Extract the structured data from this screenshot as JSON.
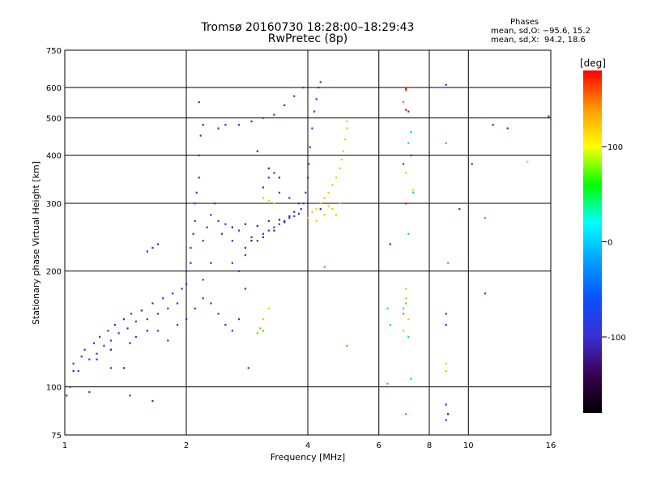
{
  "title": "Tromsø 20160730 18:28:00–18:29:43",
  "subtitle": "RwPretec (8p)",
  "stats": {
    "header": "Phases",
    "line1": "mean, sd,O: −95.6, 15.2",
    "line2": "mean, sd,X:  94.2, 18.6"
  },
  "chart_data": {
    "type": "scatter",
    "title": "Tromsø 20160730 18:28:00–18:29:43",
    "subtitle": "RwPretec (8p)",
    "xlabel": "Frequency [MHz]",
    "ylabel": "Stationary phase Virtual Height [km]",
    "x_scale": "log",
    "y_scale": "log",
    "xlim": [
      1,
      16
    ],
    "ylim": [
      75,
      750
    ],
    "x_ticks": [
      1,
      2,
      4,
      6,
      8,
      10,
      16
    ],
    "y_ticks": [
      75,
      100,
      200,
      300,
      400,
      500,
      600,
      750
    ],
    "grid": true,
    "colorbar": {
      "label": "[deg]",
      "range": [
        -180,
        180
      ],
      "ticks": [
        100,
        0,
        -100
      ],
      "colors": [
        "#000000",
        "#3a0050",
        "#3a2fd0",
        "#0a50ff",
        "#00a0ff",
        "#00ffff",
        "#00ff00",
        "#ffff00",
        "#ff9900",
        "#ff0000"
      ]
    },
    "series": [
      {
        "color": "#2236e0",
        "points": [
          [
            1.01,
            95
          ],
          [
            1.03,
            100
          ],
          [
            1.05,
            115
          ],
          [
            1.08,
            110
          ],
          [
            1.1,
            120
          ],
          [
            1.12,
            125
          ],
          [
            1.15,
            118
          ],
          [
            1.18,
            130
          ],
          [
            1.2,
            122
          ],
          [
            1.22,
            135
          ],
          [
            1.25,
            128
          ],
          [
            1.28,
            140
          ],
          [
            1.3,
            132
          ],
          [
            1.33,
            145
          ],
          [
            1.36,
            138
          ],
          [
            1.4,
            150
          ],
          [
            1.43,
            142
          ],
          [
            1.46,
            155
          ],
          [
            1.5,
            148
          ],
          [
            1.55,
            158
          ],
          [
            1.6,
            150
          ],
          [
            1.65,
            165
          ],
          [
            1.7,
            155
          ],
          [
            1.75,
            170
          ],
          [
            1.8,
            160
          ],
          [
            1.85,
            175
          ],
          [
            1.9,
            165
          ],
          [
            1.95,
            180
          ],
          [
            2.0,
            185
          ],
          [
            2.0,
            200
          ],
          [
            2.05,
            210
          ],
          [
            2.05,
            230
          ],
          [
            2.08,
            250
          ],
          [
            2.1,
            270
          ],
          [
            2.1,
            300
          ],
          [
            2.12,
            320
          ],
          [
            2.15,
            350
          ],
          [
            2.15,
            400
          ],
          [
            2.17,
            450
          ],
          [
            2.2,
            480
          ],
          [
            2.2,
            240
          ],
          [
            2.25,
            260
          ],
          [
            2.3,
            280
          ],
          [
            2.35,
            300
          ],
          [
            2.4,
            270
          ],
          [
            2.45,
            250
          ],
          [
            2.5,
            265
          ],
          [
            2.6,
            240
          ],
          [
            2.7,
            255
          ],
          [
            2.8,
            230
          ],
          [
            2.9,
            245
          ],
          [
            3.0,
            240
          ],
          [
            3.1,
            250
          ],
          [
            3.2,
            255
          ],
          [
            3.3,
            260
          ],
          [
            3.4,
            265
          ],
          [
            3.5,
            270
          ],
          [
            3.6,
            275
          ],
          [
            3.7,
            278
          ],
          [
            3.8,
            282
          ],
          [
            3.85,
            290
          ],
          [
            3.9,
            300
          ],
          [
            3.95,
            320
          ],
          [
            4.0,
            350
          ],
          [
            4.02,
            380
          ],
          [
            4.05,
            420
          ],
          [
            4.1,
            470
          ],
          [
            4.15,
            520
          ],
          [
            4.2,
            560
          ],
          [
            4.25,
            600
          ],
          [
            4.3,
            620
          ],
          [
            2.4,
            470
          ],
          [
            2.5,
            480
          ],
          [
            2.7,
            480
          ],
          [
            2.9,
            490
          ],
          [
            3.1,
            500
          ],
          [
            3.3,
            510
          ],
          [
            3.5,
            540
          ],
          [
            3.7,
            570
          ],
          [
            3.9,
            600
          ],
          [
            1.6,
            225
          ],
          [
            1.65,
            230
          ],
          [
            1.7,
            235
          ],
          [
            1.2,
            118
          ],
          [
            1.3,
            112
          ],
          [
            1.5,
            135
          ],
          [
            1.7,
            140
          ],
          [
            1.8,
            132
          ],
          [
            1.9,
            145
          ],
          [
            2.0,
            150
          ],
          [
            2.1,
            160
          ],
          [
            2.2,
            170
          ],
          [
            2.3,
            165
          ],
          [
            2.4,
            155
          ],
          [
            2.5,
            145
          ],
          [
            2.6,
            140
          ],
          [
            2.7,
            150
          ],
          [
            2.8,
            180
          ],
          [
            2.2,
            190
          ],
          [
            2.3,
            210
          ],
          [
            2.6,
            210
          ],
          [
            2.7,
            200
          ],
          [
            2.8,
            220
          ],
          [
            3.1,
            330
          ],
          [
            3.2,
            350
          ],
          [
            3.3,
            360
          ],
          [
            3.4,
            320
          ],
          [
            3.6,
            310
          ],
          [
            3.8,
            300
          ],
          [
            4.3,
            290
          ],
          [
            2.15,
            550
          ],
          [
            8.8,
            610
          ],
          [
            6.4,
            235
          ],
          [
            6.9,
            380
          ],
          [
            7.2,
            400
          ],
          [
            7.1,
            520
          ],
          [
            8.8,
            145
          ],
          [
            8.8,
            82
          ],
          [
            8.8,
            90
          ],
          [
            11.5,
            480
          ],
          [
            12.5,
            470
          ],
          [
            8.8,
            155
          ],
          [
            10.2,
            380
          ],
          [
            9.5,
            290
          ],
          [
            11.0,
            175
          ],
          [
            15.8,
            505
          ],
          [
            1.45,
            95
          ],
          [
            1.65,
            92
          ],
          [
            2.85,
            112
          ],
          [
            1.15,
            97
          ]
        ]
      },
      {
        "color": "#3a1a90",
        "points": [
          [
            1.05,
            110
          ],
          [
            1.3,
            125
          ],
          [
            1.45,
            130
          ],
          [
            1.6,
            140
          ],
          [
            2.6,
            260
          ],
          [
            2.8,
            265
          ],
          [
            3.0,
            262
          ],
          [
            3.2,
            270
          ],
          [
            3.4,
            272
          ],
          [
            3.6,
            278
          ],
          [
            2.9,
            240
          ],
          [
            3.1,
            245
          ],
          [
            3.3,
            255
          ],
          [
            3.5,
            268
          ],
          [
            3.7,
            285
          ],
          [
            3.0,
            410
          ],
          [
            3.2,
            370
          ],
          [
            3.4,
            350
          ],
          [
            8.9,
            85
          ],
          [
            1.4,
            112
          ]
        ]
      },
      {
        "color": "#00d0ff",
        "points": [
          [
            7.0,
            300
          ],
          [
            7.1,
            250
          ],
          [
            7.2,
            460
          ],
          [
            7.1,
            430
          ],
          [
            7.3,
            320
          ],
          [
            6.9,
            160
          ],
          [
            7.1,
            135
          ],
          [
            7.2,
            105
          ],
          [
            6.4,
            145
          ],
          [
            6.3,
            160
          ]
        ]
      },
      {
        "color": "#e0d000",
        "points": [
          [
            4.0,
            275
          ],
          [
            4.1,
            285
          ],
          [
            4.2,
            290
          ],
          [
            4.3,
            300
          ],
          [
            4.4,
            310
          ],
          [
            4.5,
            320
          ],
          [
            4.6,
            335
          ],
          [
            4.7,
            350
          ],
          [
            4.8,
            370
          ],
          [
            4.85,
            390
          ],
          [
            4.9,
            410
          ],
          [
            4.95,
            440
          ],
          [
            5.0,
            470
          ],
          [
            5.0,
            490
          ],
          [
            4.2,
            270
          ],
          [
            4.4,
            280
          ],
          [
            4.6,
            290
          ],
          [
            4.8,
            300
          ],
          [
            4.7,
            280
          ],
          [
            4.5,
            295
          ],
          [
            3.2,
            305
          ],
          [
            3.3,
            300
          ],
          [
            3.1,
            310
          ],
          [
            7.0,
            360
          ],
          [
            7.0,
            180
          ],
          [
            7.1,
            150
          ],
          [
            8.8,
            110
          ],
          [
            8.8,
            115
          ],
          [
            6.9,
            140
          ],
          [
            14.0,
            385
          ],
          [
            7.3,
            325
          ],
          [
            3.1,
            150
          ],
          [
            3.2,
            160
          ],
          [
            7.0,
            170
          ]
        ]
      },
      {
        "color": "#60e000",
        "points": [
          [
            3.0,
            138
          ],
          [
            3.05,
            142
          ],
          [
            3.1,
            140
          ],
          [
            7.0,
            165
          ]
        ]
      },
      {
        "color": "#ff7000",
        "points": [
          [
            7.0,
            590
          ],
          [
            6.3,
            102
          ],
          [
            7.0,
            85
          ],
          [
            8.8,
            430
          ],
          [
            11.0,
            275
          ],
          [
            8.9,
            210
          ],
          [
            4.4,
            205
          ],
          [
            5.0,
            128
          ],
          [
            6.9,
            550
          ],
          [
            6.9,
            155
          ]
        ]
      },
      {
        "color": "#ff0000",
        "points": [
          [
            7.0,
            595
          ],
          [
            7.0,
            525
          ],
          [
            7.0,
            300
          ]
        ]
      }
    ]
  }
}
